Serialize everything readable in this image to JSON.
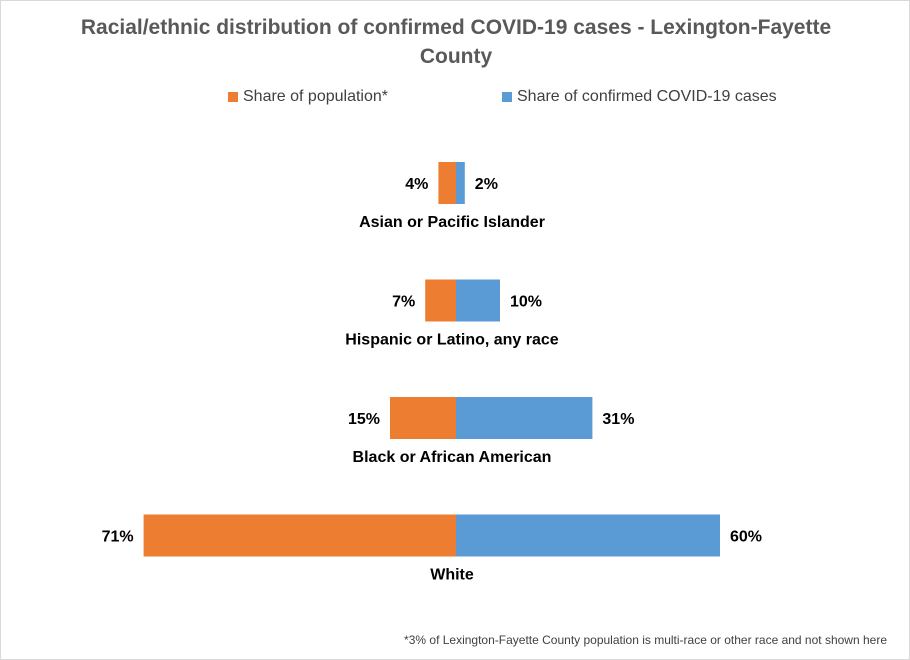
{
  "chart_data": {
    "type": "bar",
    "orientation": "horizontal-butterfly",
    "title": "Racial/ethnic distribution of confirmed COVID-19 cases -  Lexington-Fayette County",
    "categories": [
      "Asian or Pacific Islander",
      "Hispanic or Latino, any race",
      "Black or African American",
      "White"
    ],
    "series": [
      {
        "name": "Share of population*",
        "values": [
          4,
          7,
          15,
          71
        ],
        "labels": [
          "4%",
          "7%",
          "15%",
          "71%"
        ],
        "color": "#ED7D31",
        "side": "left"
      },
      {
        "name": "Share of confirmed COVID-19 cases",
        "values": [
          2,
          10,
          31,
          60
        ],
        "labels": [
          "2%",
          "10%",
          "31%",
          "60%"
        ],
        "color": "#5B9BD5",
        "side": "right"
      }
    ],
    "unit": "%",
    "legend": "top-center",
    "grid": false,
    "footnote": "*3% of Lexington-Fayette County population is multi-race or other race and not shown here"
  }
}
